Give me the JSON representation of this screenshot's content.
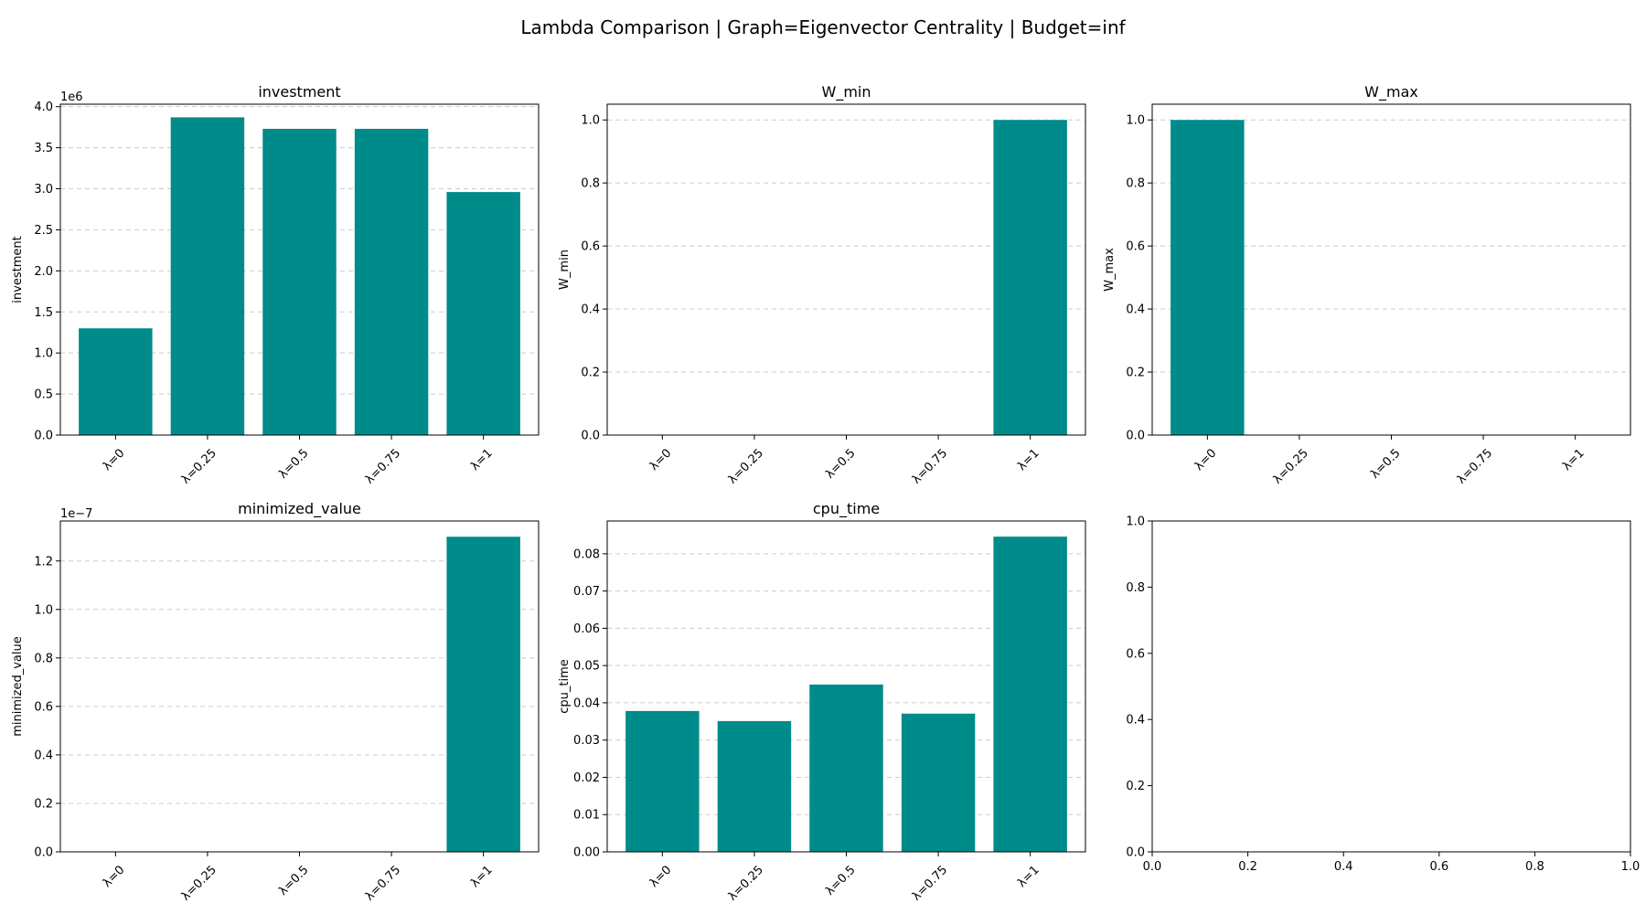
{
  "figure": {
    "title": "Lambda Comparison | Graph=Eigenvector Centrality | Budget=inf",
    "bar_color": "#008b8b",
    "grid_color": "#cccccc"
  },
  "chart_data": [
    {
      "type": "bar",
      "title": "investment",
      "ylabel": "investment",
      "categories": [
        "λ=0",
        "λ=0.25",
        "λ=0.5",
        "λ=0.75",
        "λ=1"
      ],
      "values": [
        1300000,
        3870000,
        3730000,
        3730000,
        2960000
      ],
      "ylim": [
        0,
        4030000
      ],
      "yticks": [
        0,
        500000,
        1000000,
        1500000,
        2000000,
        2500000,
        3000000,
        3500000,
        4000000
      ],
      "ytick_labels": [
        "0.0",
        "0.5",
        "1.0",
        "1.5",
        "2.0",
        "2.5",
        "3.0",
        "3.5",
        "4.0"
      ],
      "y_offset_label": "1e6",
      "grid": "y-dashed"
    },
    {
      "type": "bar",
      "title": "W_min",
      "ylabel": "W_min",
      "categories": [
        "λ=0",
        "λ=0.25",
        "λ=0.5",
        "λ=0.75",
        "λ=1"
      ],
      "values": [
        0,
        0,
        0,
        0,
        1.0
      ],
      "ylim": [
        0,
        1.05
      ],
      "yticks": [
        0,
        0.2,
        0.4,
        0.6,
        0.8,
        1.0
      ],
      "ytick_labels": [
        "0.0",
        "0.2",
        "0.4",
        "0.6",
        "0.8",
        "1.0"
      ],
      "grid": "y-dashed"
    },
    {
      "type": "bar",
      "title": "W_max",
      "ylabel": "W_max",
      "categories": [
        "λ=0",
        "λ=0.25",
        "λ=0.5",
        "λ=0.75",
        "λ=1"
      ],
      "values": [
        1.0,
        0,
        0,
        0,
        0
      ],
      "ylim": [
        0,
        1.05
      ],
      "yticks": [
        0,
        0.2,
        0.4,
        0.6,
        0.8,
        1.0
      ],
      "ytick_labels": [
        "0.0",
        "0.2",
        "0.4",
        "0.6",
        "0.8",
        "1.0"
      ],
      "grid": "y-dashed"
    },
    {
      "type": "bar",
      "title": "minimized_value",
      "ylabel": "minimized_value",
      "categories": [
        "λ=0",
        "λ=0.25",
        "λ=0.5",
        "λ=0.75",
        "λ=1"
      ],
      "values": [
        0,
        0,
        0,
        0,
        1.3e-07
      ],
      "ylim": [
        0,
        1.365e-07
      ],
      "yticks": [
        0,
        2e-08,
        4e-08,
        6e-08,
        8e-08,
        1e-07,
        1.2e-07
      ],
      "ytick_labels": [
        "0.0",
        "0.2",
        "0.4",
        "0.6",
        "0.8",
        "1.0",
        "1.2"
      ],
      "y_offset_label": "1e−7",
      "grid": "y-dashed"
    },
    {
      "type": "bar",
      "title": "cpu_time",
      "ylabel": "cpu_time",
      "categories": [
        "λ=0",
        "λ=0.25",
        "λ=0.5",
        "λ=0.75",
        "λ=1"
      ],
      "values": [
        0.0378,
        0.0351,
        0.0449,
        0.0371,
        0.0846
      ],
      "ylim": [
        0,
        0.0888
      ],
      "yticks": [
        0,
        0.01,
        0.02,
        0.03,
        0.04,
        0.05,
        0.06,
        0.07,
        0.08
      ],
      "ytick_labels": [
        "0.00",
        "0.01",
        "0.02",
        "0.03",
        "0.04",
        "0.05",
        "0.06",
        "0.07",
        "0.08"
      ],
      "grid": "y-dashed"
    },
    {
      "type": "empty",
      "xlim": [
        0,
        1
      ],
      "ylim": [
        0,
        1
      ],
      "xticks": [
        0,
        0.2,
        0.4,
        0.6,
        0.8,
        1.0
      ],
      "xtick_labels": [
        "0.0",
        "0.2",
        "0.4",
        "0.6",
        "0.8",
        "1.0"
      ],
      "yticks": [
        0,
        0.2,
        0.4,
        0.6,
        0.8,
        1.0
      ],
      "ytick_labels": [
        "0.0",
        "0.2",
        "0.4",
        "0.6",
        "0.8",
        "1.0"
      ]
    }
  ]
}
